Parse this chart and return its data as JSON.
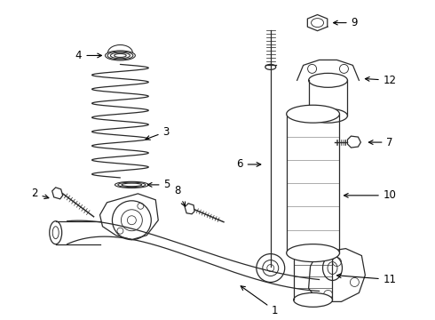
{
  "bg_color": "#ffffff",
  "line_color": "#2a2a2a",
  "label_color": "#000000",
  "figwidth": 4.9,
  "figheight": 3.6,
  "dpi": 100
}
